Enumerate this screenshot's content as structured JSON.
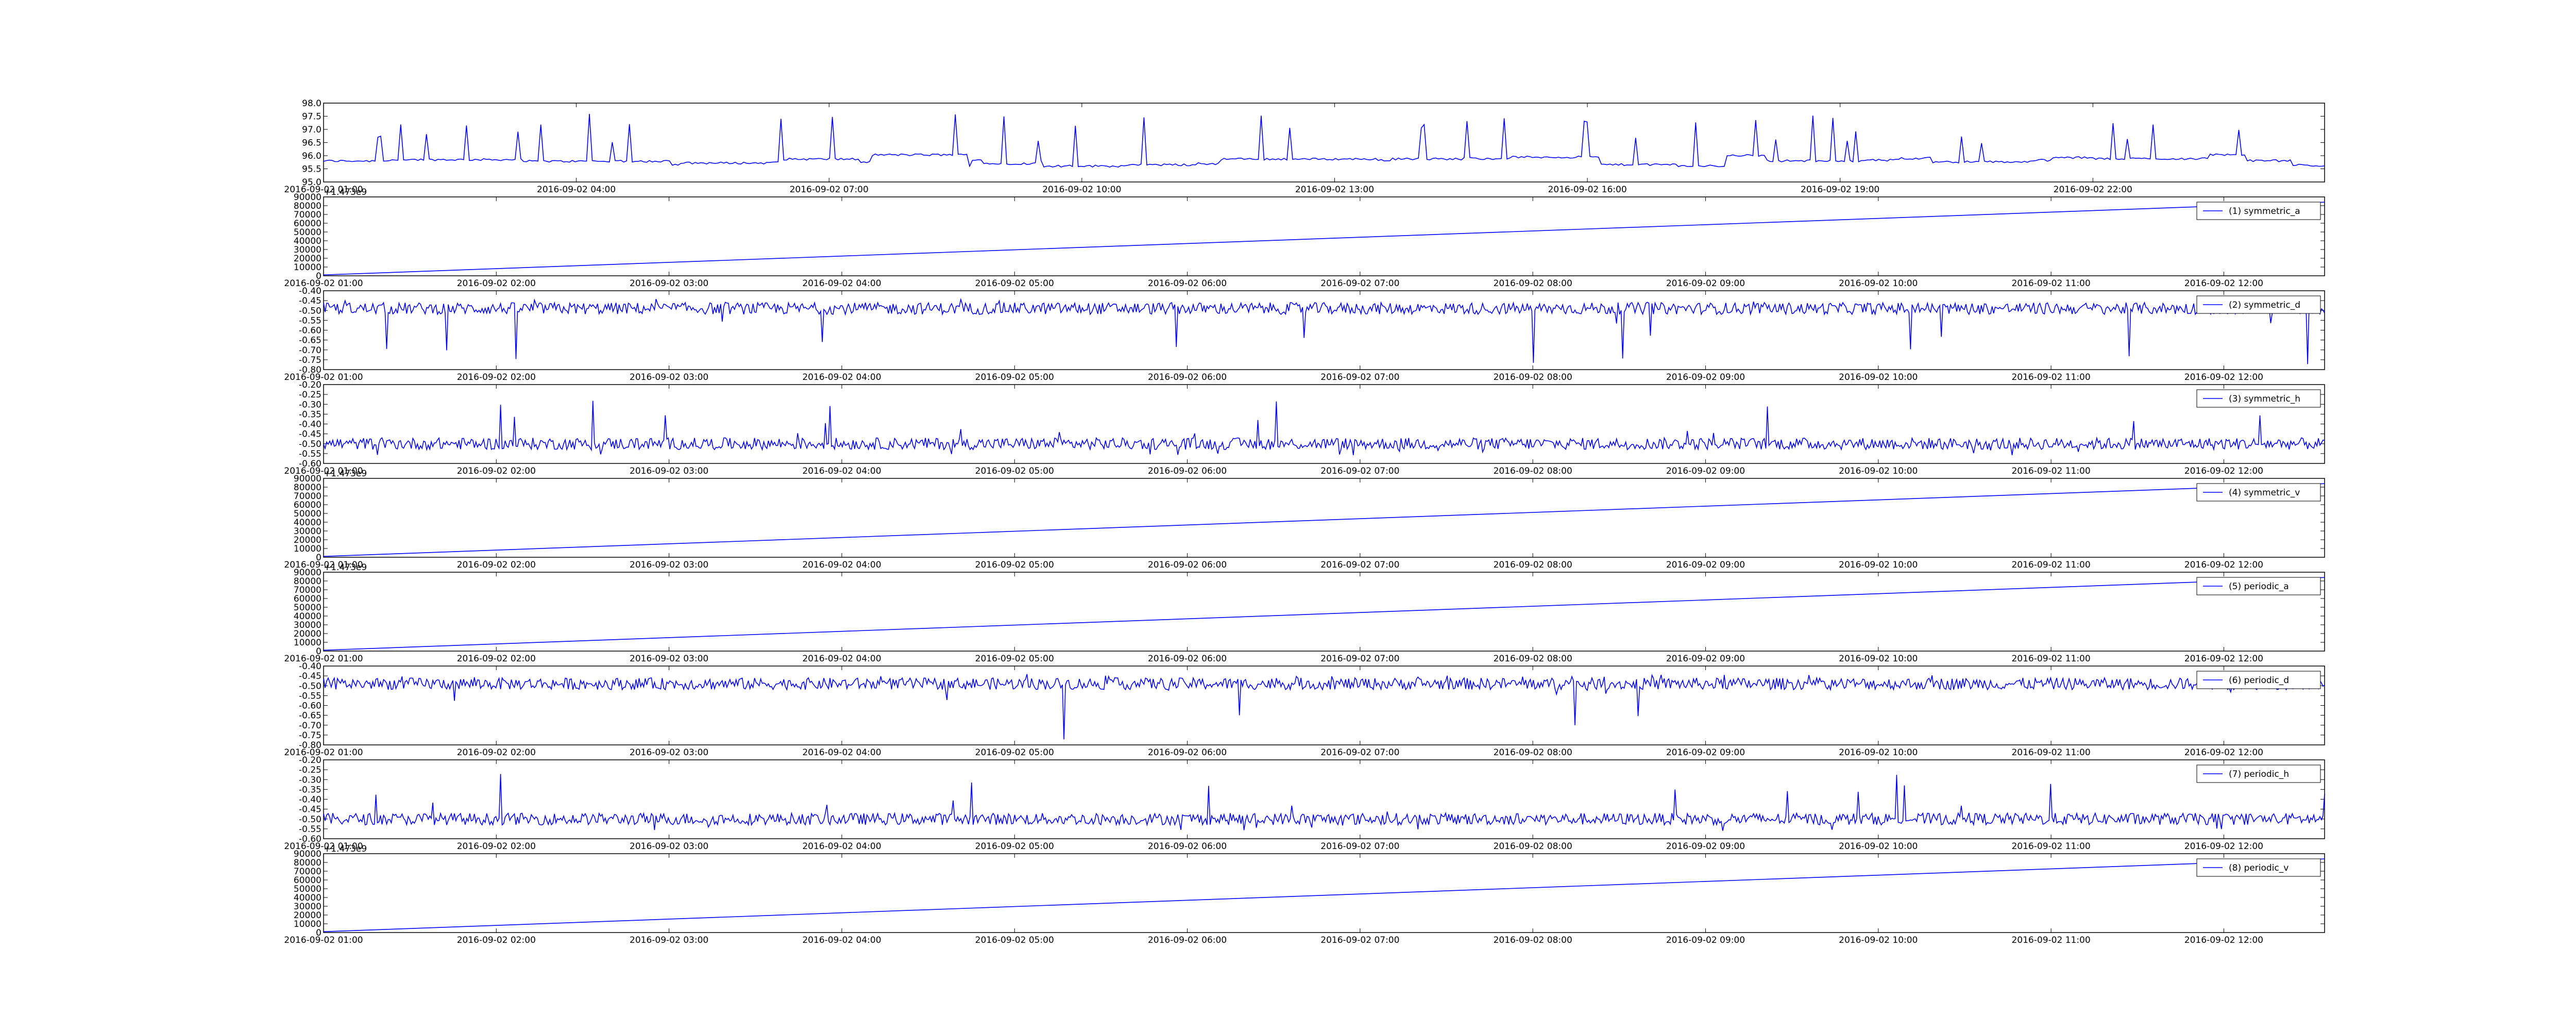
{
  "colors": {
    "line": "#0000ff",
    "axes": "#000000",
    "background": "#ffffff"
  },
  "chart_data": [
    {
      "type": "line",
      "title": "",
      "xlabel": "",
      "ylabel": "",
      "offset_label": "",
      "legend": null,
      "grid": false,
      "x_start": "2016-09-02 01:00",
      "x_end": "2016-09-03 00:45",
      "ylim": [
        95.0,
        98.0
      ],
      "yticks": [
        "95.0",
        "95.5",
        "96.0",
        "96.5",
        "97.0",
        "97.5",
        "98.0"
      ],
      "xticks": [
        "2016-09-02 01:00",
        "2016-09-02 04:00",
        "2016-09-02 07:00",
        "2016-09-02 10:00",
        "2016-09-02 13:00",
        "2016-09-02 16:00",
        "2016-09-02 19:00",
        "2016-09-02 22:00"
      ],
      "series": [
        {
          "baseline": 95.8,
          "spike_top": 97.6,
          "pattern": "stepped-spikes"
        }
      ]
    },
    {
      "type": "line",
      "title": "",
      "offset_label": "+1.473e9",
      "legend": {
        "label": "(1) symmetric_a",
        "position": "upper right"
      },
      "grid": false,
      "x_start": "2016-09-02 01:00",
      "x_end": "2016-09-02 12:35",
      "ylim": [
        0,
        90000
      ],
      "yticks": [
        "0",
        "10000",
        "20000",
        "30000",
        "40000",
        "50000",
        "60000",
        "70000",
        "80000",
        "90000"
      ],
      "xticks": [
        "2016-09-02 01:00",
        "2016-09-02 02:00",
        "2016-09-02 03:00",
        "2016-09-02 04:00",
        "2016-09-02 05:00",
        "2016-09-02 06:00",
        "2016-09-02 07:00",
        "2016-09-02 08:00",
        "2016-09-02 09:00",
        "2016-09-02 10:00",
        "2016-09-02 11:00",
        "2016-09-02 12:00"
      ],
      "series": [
        {
          "start_value": 1000,
          "end_value": 84000,
          "pattern": "linear"
        }
      ]
    },
    {
      "type": "line",
      "title": "",
      "offset_label": "",
      "legend": {
        "label": "(2) symmetric_d",
        "position": "upper right"
      },
      "grid": false,
      "x_start": "2016-09-02 01:00",
      "x_end": "2016-09-02 12:35",
      "ylim": [
        -0.8,
        -0.4
      ],
      "yticks": [
        "-0.80",
        "-0.75",
        "-0.70",
        "-0.65",
        "-0.60",
        "-0.55",
        "-0.50",
        "-0.45",
        "-0.40"
      ],
      "xticks": [
        "2016-09-02 01:00",
        "2016-09-02 02:00",
        "2016-09-02 03:00",
        "2016-09-02 04:00",
        "2016-09-02 05:00",
        "2016-09-02 06:00",
        "2016-09-02 07:00",
        "2016-09-02 08:00",
        "2016-09-02 09:00",
        "2016-09-02 10:00",
        "2016-09-02 11:00",
        "2016-09-02 12:00"
      ],
      "series": [
        {
          "baseline": -0.49,
          "noise": 0.03,
          "spike_min": -0.78,
          "spike_max": -0.44,
          "spike_direction": "down",
          "pattern": "noisy"
        }
      ]
    },
    {
      "type": "line",
      "title": "",
      "offset_label": "",
      "legend": {
        "label": "(3) symmetric_h",
        "position": "upper right"
      },
      "grid": false,
      "x_start": "2016-09-02 01:00",
      "x_end": "2016-09-02 12:35",
      "ylim": [
        -0.6,
        -0.2
      ],
      "yticks": [
        "-0.60",
        "-0.55",
        "-0.50",
        "-0.45",
        "-0.40",
        "-0.35",
        "-0.30",
        "-0.25",
        "-0.20"
      ],
      "xticks": [
        "2016-09-02 01:00",
        "2016-09-02 02:00",
        "2016-09-02 03:00",
        "2016-09-02 04:00",
        "2016-09-02 05:00",
        "2016-09-02 06:00",
        "2016-09-02 07:00",
        "2016-09-02 08:00",
        "2016-09-02 09:00",
        "2016-09-02 10:00",
        "2016-09-02 11:00",
        "2016-09-02 12:00"
      ],
      "series": [
        {
          "baseline": -0.5,
          "noise": 0.03,
          "spike_min": -0.56,
          "spike_max": -0.27,
          "spike_direction": "up",
          "pattern": "noisy"
        }
      ]
    },
    {
      "type": "line",
      "title": "",
      "offset_label": "+1.473e9",
      "legend": {
        "label": "(4) symmetric_v",
        "position": "upper right"
      },
      "grid": false,
      "x_start": "2016-09-02 01:00",
      "x_end": "2016-09-02 12:35",
      "ylim": [
        0,
        90000
      ],
      "yticks": [
        "0",
        "10000",
        "20000",
        "30000",
        "40000",
        "50000",
        "60000",
        "70000",
        "80000",
        "90000"
      ],
      "xticks": [
        "2016-09-02 01:00",
        "2016-09-02 02:00",
        "2016-09-02 03:00",
        "2016-09-02 04:00",
        "2016-09-02 05:00",
        "2016-09-02 06:00",
        "2016-09-02 07:00",
        "2016-09-02 08:00",
        "2016-09-02 09:00",
        "2016-09-02 10:00",
        "2016-09-02 11:00",
        "2016-09-02 12:00"
      ],
      "series": [
        {
          "start_value": 1000,
          "end_value": 84000,
          "pattern": "linear"
        }
      ]
    },
    {
      "type": "line",
      "title": "",
      "offset_label": "+1.473e9",
      "legend": {
        "label": "(5) periodic_a",
        "position": "upper right"
      },
      "grid": false,
      "x_start": "2016-09-02 01:00",
      "x_end": "2016-09-02 12:35",
      "ylim": [
        0,
        90000
      ],
      "yticks": [
        "0",
        "10000",
        "20000",
        "30000",
        "40000",
        "50000",
        "60000",
        "70000",
        "80000",
        "90000"
      ],
      "xticks": [
        "2016-09-02 01:00",
        "2016-09-02 02:00",
        "2016-09-02 03:00",
        "2016-09-02 04:00",
        "2016-09-02 05:00",
        "2016-09-02 06:00",
        "2016-09-02 07:00",
        "2016-09-02 08:00",
        "2016-09-02 09:00",
        "2016-09-02 10:00",
        "2016-09-02 11:00",
        "2016-09-02 12:00"
      ],
      "series": [
        {
          "start_value": 1000,
          "end_value": 84000,
          "pattern": "linear"
        }
      ]
    },
    {
      "type": "line",
      "title": "",
      "offset_label": "",
      "legend": {
        "label": "(6) periodic_d",
        "position": "upper right"
      },
      "grid": false,
      "x_start": "2016-09-02 01:00",
      "x_end": "2016-09-02 12:35",
      "ylim": [
        -0.8,
        -0.4
      ],
      "yticks": [
        "-0.80",
        "-0.75",
        "-0.70",
        "-0.65",
        "-0.60",
        "-0.55",
        "-0.50",
        "-0.45",
        "-0.40"
      ],
      "xticks": [
        "2016-09-02 01:00",
        "2016-09-02 02:00",
        "2016-09-02 03:00",
        "2016-09-02 04:00",
        "2016-09-02 05:00",
        "2016-09-02 06:00",
        "2016-09-02 07:00",
        "2016-09-02 08:00",
        "2016-09-02 09:00",
        "2016-09-02 10:00",
        "2016-09-02 11:00",
        "2016-09-02 12:00"
      ],
      "series": [
        {
          "baseline": -0.49,
          "noise": 0.03,
          "spike_min": -0.78,
          "spike_max": -0.44,
          "spike_direction": "down",
          "pattern": "noisy"
        }
      ]
    },
    {
      "type": "line",
      "title": "",
      "offset_label": "",
      "legend": {
        "label": "(7) periodic_h",
        "position": "upper right"
      },
      "grid": false,
      "x_start": "2016-09-02 01:00",
      "x_end": "2016-09-02 12:35",
      "ylim": [
        -0.6,
        -0.2
      ],
      "yticks": [
        "-0.60",
        "-0.55",
        "-0.50",
        "-0.45",
        "-0.40",
        "-0.35",
        "-0.30",
        "-0.25",
        "-0.20"
      ],
      "xticks": [
        "2016-09-02 01:00",
        "2016-09-02 02:00",
        "2016-09-02 03:00",
        "2016-09-02 04:00",
        "2016-09-02 05:00",
        "2016-09-02 06:00",
        "2016-09-02 07:00",
        "2016-09-02 08:00",
        "2016-09-02 09:00",
        "2016-09-02 10:00",
        "2016-09-02 11:00",
        "2016-09-02 12:00"
      ],
      "series": [
        {
          "baseline": -0.5,
          "noise": 0.03,
          "spike_min": -0.56,
          "spike_max": -0.27,
          "spike_direction": "up",
          "pattern": "noisy"
        }
      ]
    },
    {
      "type": "line",
      "title": "",
      "offset_label": "+1.473e9",
      "legend": {
        "label": "(8) periodic_v",
        "position": "upper right"
      },
      "grid": false,
      "x_start": "2016-09-02 01:00",
      "x_end": "2016-09-02 12:35",
      "ylim": [
        0,
        90000
      ],
      "yticks": [
        "0",
        "10000",
        "20000",
        "30000",
        "40000",
        "50000",
        "60000",
        "70000",
        "80000",
        "90000"
      ],
      "xticks": [
        "2016-09-02 01:00",
        "2016-09-02 02:00",
        "2016-09-02 03:00",
        "2016-09-02 04:00",
        "2016-09-02 05:00",
        "2016-09-02 06:00",
        "2016-09-02 07:00",
        "2016-09-02 08:00",
        "2016-09-02 09:00",
        "2016-09-02 10:00",
        "2016-09-02 11:00",
        "2016-09-02 12:00"
      ],
      "series": [
        {
          "start_value": 1000,
          "end_value": 84000,
          "pattern": "linear"
        }
      ]
    }
  ]
}
